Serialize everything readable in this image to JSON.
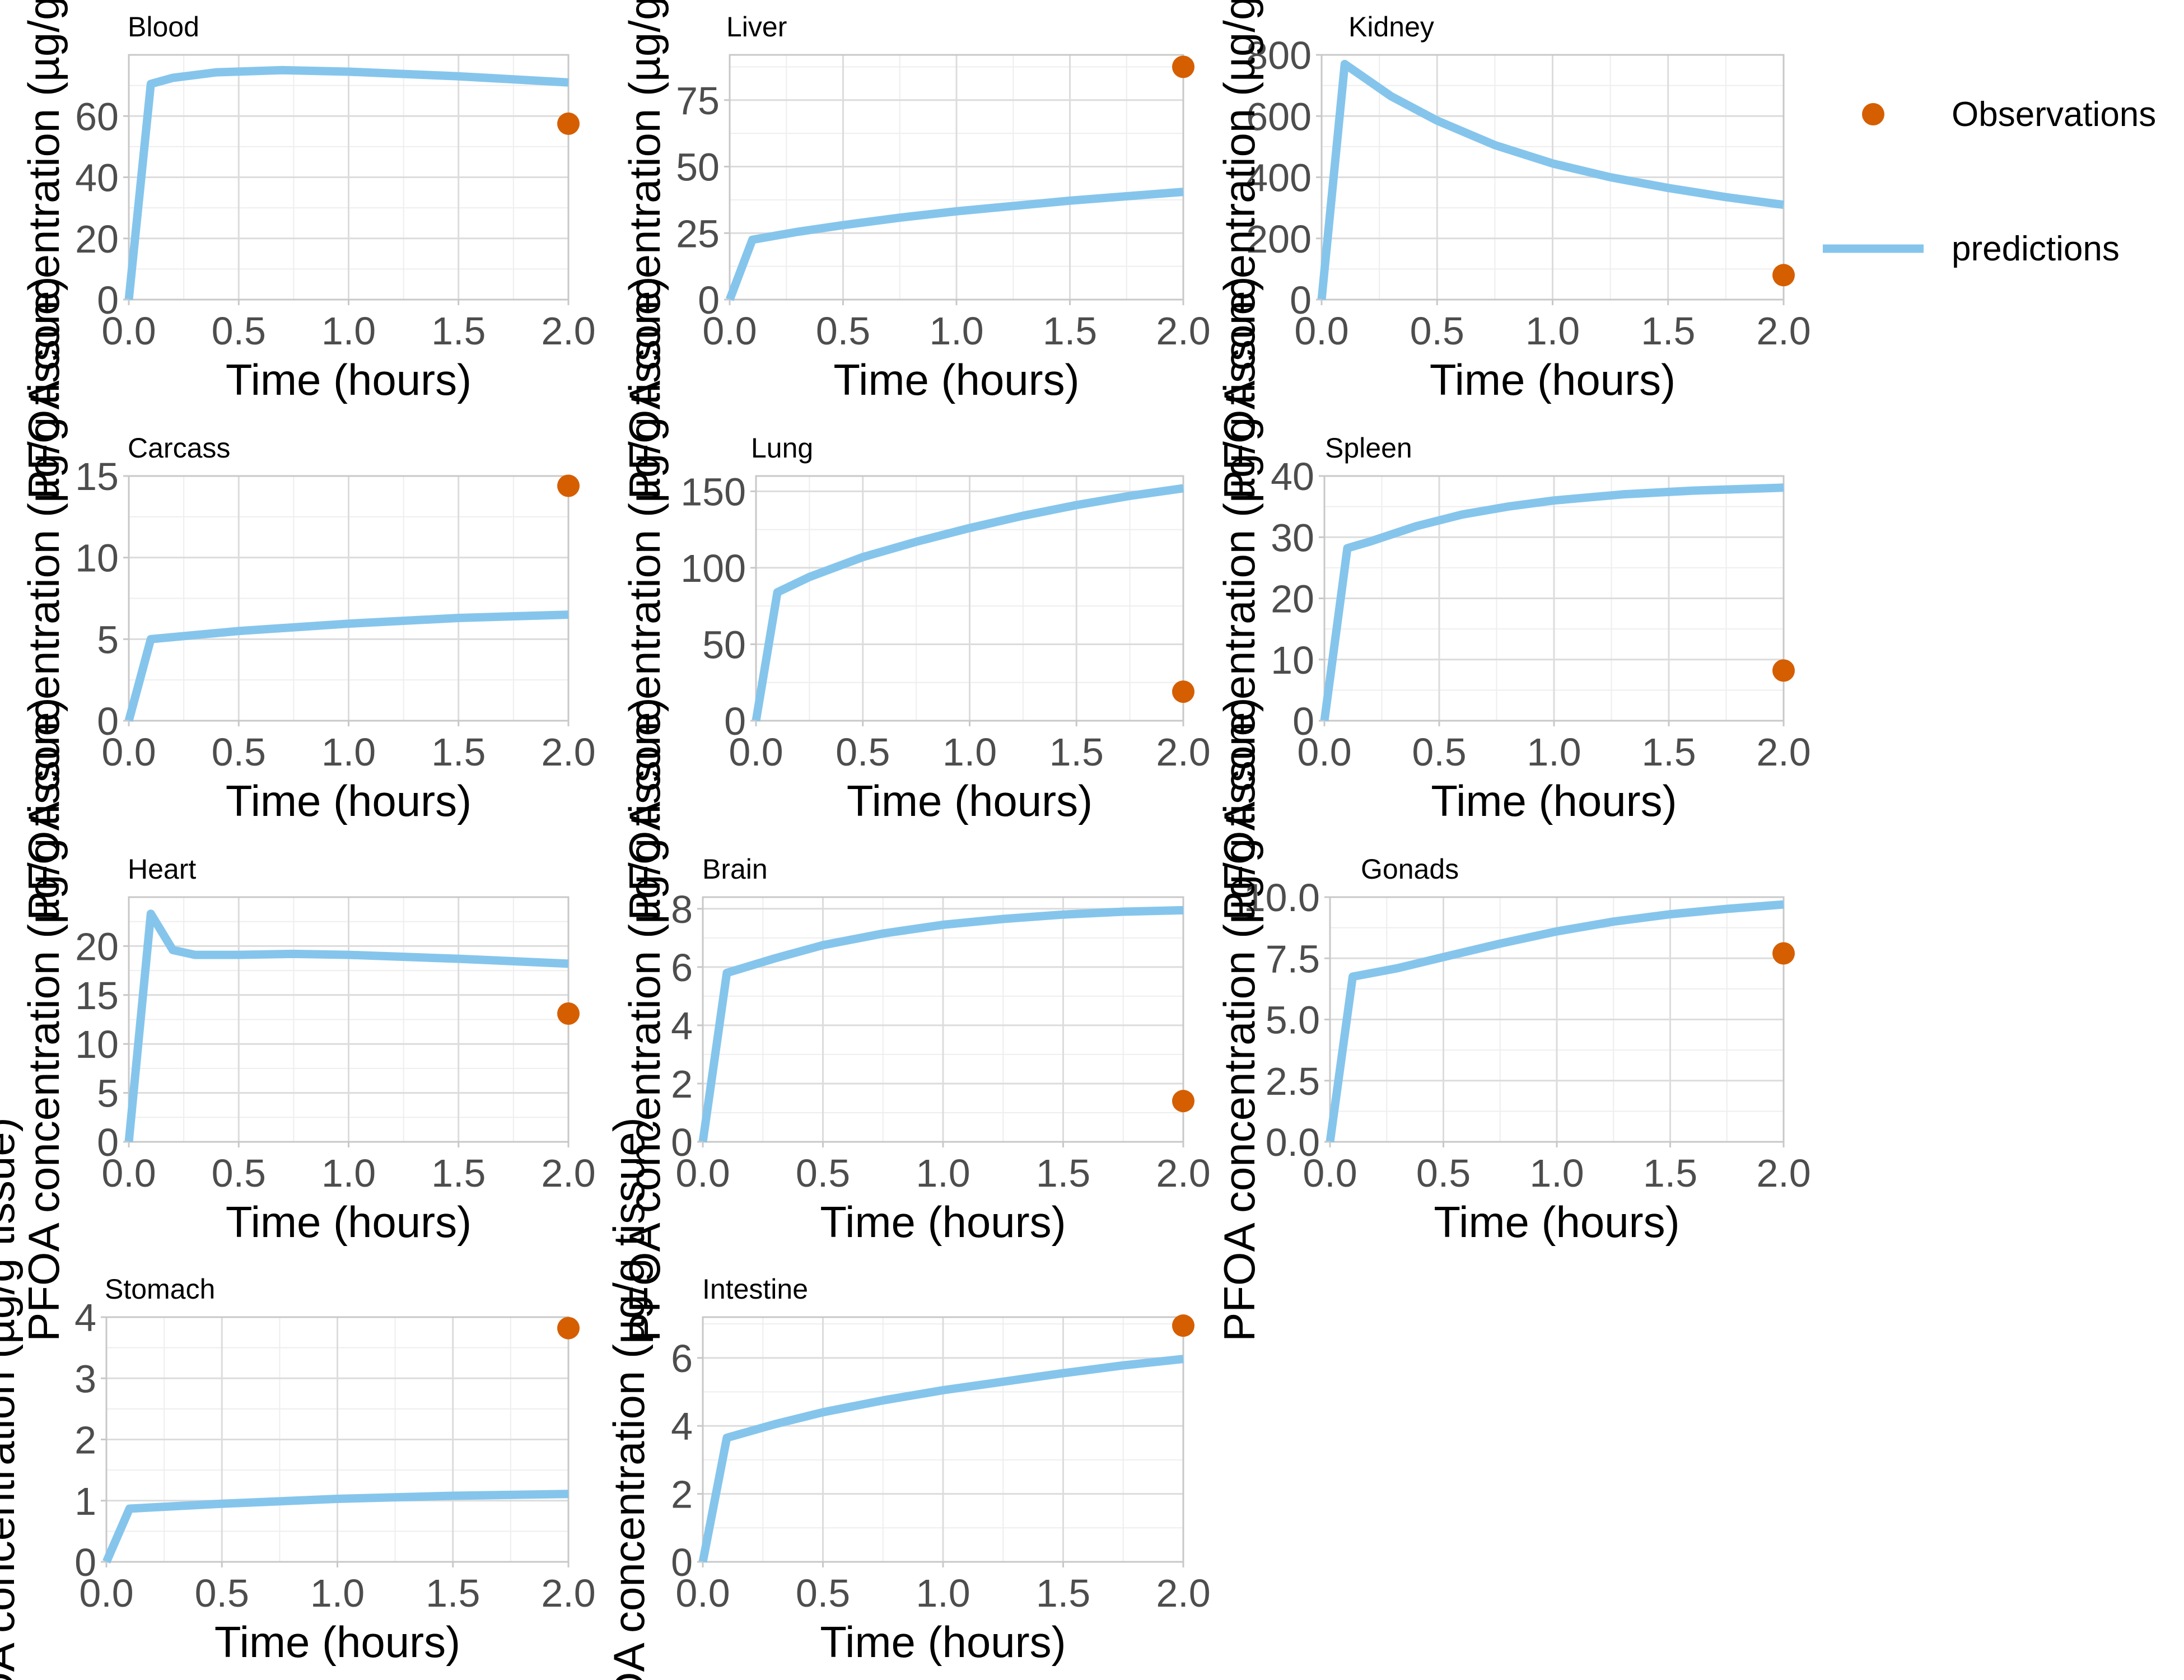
{
  "colors": {
    "predictions": "#85c5ec",
    "observations": "#d55e00",
    "grid_major": "#dcdcdc",
    "grid_minor": "#eeeeee",
    "border": "#c8c8c8"
  },
  "legend": {
    "observations": "Observations",
    "predictions": "predictions"
  },
  "chart_data": [
    {
      "type": "line",
      "title": "Blood",
      "xlabel": "Time (hours)",
      "ylabel": "PFOA concentration (µg/g tissue)",
      "xlim": [
        0,
        2
      ],
      "ylim": [
        0,
        80
      ],
      "xticks": [
        0,
        0.5,
        1,
        1.5,
        2
      ],
      "xtick_labels": [
        "0.0",
        "0.5",
        "1.0",
        "1.5",
        "2.0"
      ],
      "yticks": [
        0,
        20,
        40,
        60
      ],
      "ytick_labels": [
        "0",
        "20",
        "40",
        "60"
      ],
      "series": [
        {
          "name": "predictions",
          "x": [
            0,
            0.1,
            0.2,
            0.4,
            0.7,
            1.0,
            1.5,
            2.0
          ],
          "y": [
            0,
            70.5,
            72.5,
            74.3,
            75.0,
            74.5,
            73.0,
            71.0
          ]
        },
        {
          "name": "Observations",
          "x": [
            2.0
          ],
          "y": [
            57.5
          ]
        }
      ]
    },
    {
      "type": "line",
      "title": "Liver",
      "xlabel": "Time (hours)",
      "ylabel": "PFOA concentration (µg/g tissue)",
      "xlim": [
        0,
        2
      ],
      "ylim": [
        0,
        92
      ],
      "xticks": [
        0,
        0.5,
        1,
        1.5,
        2
      ],
      "xtick_labels": [
        "0.0",
        "0.5",
        "1.0",
        "1.5",
        "2.0"
      ],
      "yticks": [
        0,
        25,
        50,
        75
      ],
      "ytick_labels": [
        "0",
        "25",
        "50",
        "75"
      ],
      "series": [
        {
          "name": "predictions",
          "x": [
            0,
            0.1,
            0.3,
            0.5,
            0.75,
            1.0,
            1.5,
            2.0
          ],
          "y": [
            0,
            22.5,
            25.5,
            28.0,
            30.8,
            33.2,
            37.2,
            40.5
          ]
        },
        {
          "name": "Observations",
          "x": [
            2.0
          ],
          "y": [
            87.5
          ]
        }
      ]
    },
    {
      "type": "line",
      "title": "Kidney",
      "xlabel": "Time (hours)",
      "ylabel": "PFOA concentration (µg/g tissue)",
      "xlim": [
        0,
        2
      ],
      "ylim": [
        0,
        800
      ],
      "xticks": [
        0,
        0.5,
        1,
        1.5,
        2
      ],
      "xtick_labels": [
        "0.0",
        "0.5",
        "1.0",
        "1.5",
        "2.0"
      ],
      "yticks": [
        0,
        200,
        400,
        600,
        800
      ],
      "ytick_labels": [
        "0",
        "200",
        "400",
        "600",
        "800"
      ],
      "series": [
        {
          "name": "predictions",
          "x": [
            0,
            0.1,
            0.3,
            0.5,
            0.75,
            1.0,
            1.25,
            1.5,
            1.75,
            2.0
          ],
          "y": [
            0,
            770,
            665,
            585,
            505,
            445,
            400,
            365,
            335,
            310
          ]
        },
        {
          "name": "Observations",
          "x": [
            2.0
          ],
          "y": [
            80
          ]
        }
      ]
    },
    {
      "type": "line",
      "title": "Carcass",
      "xlabel": "Time (hours)",
      "ylabel": "PFOA concentration (µg/g tissue)",
      "xlim": [
        0,
        2
      ],
      "ylim": [
        0,
        15
      ],
      "xticks": [
        0,
        0.5,
        1,
        1.5,
        2
      ],
      "xtick_labels": [
        "0.0",
        "0.5",
        "1.0",
        "1.5",
        "2.0"
      ],
      "yticks": [
        0,
        5,
        10,
        15
      ],
      "ytick_labels": [
        "0",
        "5",
        "10",
        "15"
      ],
      "series": [
        {
          "name": "predictions",
          "x": [
            0,
            0.1,
            0.5,
            1.0,
            1.5,
            2.0
          ],
          "y": [
            0,
            5.0,
            5.5,
            5.95,
            6.3,
            6.5
          ]
        },
        {
          "name": "Observations",
          "x": [
            2.0
          ],
          "y": [
            14.4
          ]
        }
      ]
    },
    {
      "type": "line",
      "title": "Lung",
      "xlabel": "Time (hours)",
      "ylabel": "PFOA concentration (µg/g tissue)",
      "xlim": [
        0,
        2
      ],
      "ylim": [
        0,
        160
      ],
      "xticks": [
        0,
        0.5,
        1,
        1.5,
        2
      ],
      "xtick_labels": [
        "0.0",
        "0.5",
        "1.0",
        "1.5",
        "2.0"
      ],
      "yticks": [
        0,
        50,
        100,
        150
      ],
      "ytick_labels": [
        "0",
        "50",
        "100",
        "150"
      ],
      "series": [
        {
          "name": "predictions",
          "x": [
            0,
            0.1,
            0.25,
            0.5,
            0.75,
            1.0,
            1.25,
            1.5,
            1.75,
            2.0
          ],
          "y": [
            0,
            84,
            94,
            107,
            117,
            126,
            134,
            141,
            147,
            152
          ]
        },
        {
          "name": "Observations",
          "x": [
            2.0
          ],
          "y": [
            19
          ]
        }
      ]
    },
    {
      "type": "line",
      "title": "Spleen",
      "xlabel": "Time (hours)",
      "ylabel": "PFOA concentration (µg/g tissue)",
      "xlim": [
        0,
        2
      ],
      "ylim": [
        0,
        40
      ],
      "xticks": [
        0,
        0.5,
        1,
        1.5,
        2
      ],
      "xtick_labels": [
        "0.0",
        "0.5",
        "1.0",
        "1.5",
        "2.0"
      ],
      "yticks": [
        0,
        10,
        20,
        30,
        40
      ],
      "ytick_labels": [
        "0",
        "10",
        "20",
        "30",
        "40"
      ],
      "series": [
        {
          "name": "predictions",
          "x": [
            0,
            0.1,
            0.2,
            0.4,
            0.6,
            0.8,
            1.0,
            1.3,
            1.6,
            2.0
          ],
          "y": [
            0,
            28.2,
            29.3,
            31.8,
            33.7,
            35.0,
            36.0,
            37.0,
            37.6,
            38.1
          ]
        },
        {
          "name": "Observations",
          "x": [
            2.0
          ],
          "y": [
            8.2
          ]
        }
      ]
    },
    {
      "type": "line",
      "title": "Heart",
      "xlabel": "Time (hours)",
      "ylabel": "PFOA concentration (µg/g tissue)",
      "xlim": [
        0,
        2
      ],
      "ylim": [
        0,
        25
      ],
      "xticks": [
        0,
        0.5,
        1,
        1.5,
        2
      ],
      "xtick_labels": [
        "0.0",
        "0.5",
        "1.0",
        "1.5",
        "2.0"
      ],
      "yticks": [
        0,
        5,
        10,
        15,
        20
      ],
      "ytick_labels": [
        "0",
        "5",
        "10",
        "15",
        "20"
      ],
      "series": [
        {
          "name": "predictions",
          "x": [
            0,
            0.1,
            0.2,
            0.3,
            0.5,
            0.75,
            1.0,
            1.5,
            2.0
          ],
          "y": [
            0,
            23.3,
            19.6,
            19.1,
            19.1,
            19.2,
            19.1,
            18.7,
            18.2
          ]
        },
        {
          "name": "Observations",
          "x": [
            2.0
          ],
          "y": [
            13.1
          ]
        }
      ]
    },
    {
      "type": "line",
      "title": "Brain",
      "xlabel": "Time (hours)",
      "ylabel": "PFOA concentration (µg/g tissue)",
      "xlim": [
        0,
        2
      ],
      "ylim": [
        0,
        8.4
      ],
      "xticks": [
        0,
        0.5,
        1,
        1.5,
        2
      ],
      "xtick_labels": [
        "0.0",
        "0.5",
        "1.0",
        "1.5",
        "2.0"
      ],
      "yticks": [
        0,
        2,
        4,
        6,
        8
      ],
      "ytick_labels": [
        "0",
        "2",
        "4",
        "6",
        "8"
      ],
      "series": [
        {
          "name": "predictions",
          "x": [
            0,
            0.1,
            0.3,
            0.5,
            0.75,
            1.0,
            1.25,
            1.5,
            1.75,
            2.0
          ],
          "y": [
            0,
            5.8,
            6.3,
            6.75,
            7.15,
            7.45,
            7.65,
            7.8,
            7.9,
            7.95
          ]
        },
        {
          "name": "Observations",
          "x": [
            2.0
          ],
          "y": [
            1.4
          ]
        }
      ]
    },
    {
      "type": "line",
      "title": "Gonads",
      "xlabel": "Time (hours)",
      "ylabel": "PFOA concentration (µg/g tissue)",
      "xlim": [
        0,
        2
      ],
      "ylim": [
        0,
        10
      ],
      "xticks": [
        0,
        0.5,
        1,
        1.5,
        2
      ],
      "xtick_labels": [
        "0.0",
        "0.5",
        "1.0",
        "1.5",
        "2.0"
      ],
      "yticks": [
        0,
        2.5,
        5,
        7.5,
        10
      ],
      "ytick_labels": [
        "0.0",
        "2.5",
        "5.0",
        "7.5",
        "10.0"
      ],
      "series": [
        {
          "name": "predictions",
          "x": [
            0,
            0.1,
            0.3,
            0.5,
            0.75,
            1.0,
            1.25,
            1.5,
            1.75,
            2.0
          ],
          "y": [
            0,
            6.75,
            7.1,
            7.55,
            8.1,
            8.6,
            9.0,
            9.3,
            9.52,
            9.7
          ]
        },
        {
          "name": "Observations",
          "x": [
            2.0
          ],
          "y": [
            7.7
          ]
        }
      ]
    },
    {
      "type": "line",
      "title": "Stomach",
      "xlabel": "Time (hours)",
      "ylabel": "PFOA concentration (µg/g tissue)",
      "xlim": [
        0,
        2
      ],
      "ylim": [
        0,
        4
      ],
      "xticks": [
        0,
        0.5,
        1,
        1.5,
        2
      ],
      "xtick_labels": [
        "0.0",
        "0.5",
        "1.0",
        "1.5",
        "2.0"
      ],
      "yticks": [
        0,
        1,
        2,
        3,
        4
      ],
      "ytick_labels": [
        "0",
        "1",
        "2",
        "3",
        "4"
      ],
      "series": [
        {
          "name": "predictions",
          "x": [
            0,
            0.1,
            0.5,
            1.0,
            1.5,
            2.0
          ],
          "y": [
            0,
            0.87,
            0.95,
            1.03,
            1.08,
            1.11
          ]
        },
        {
          "name": "Observations",
          "x": [
            2.0
          ],
          "y": [
            3.82
          ]
        }
      ]
    },
    {
      "type": "line",
      "title": "Intestine",
      "xlabel": "Time (hours)",
      "ylabel": "PFOA concentration (µg/g tissue)",
      "xlim": [
        0,
        2
      ],
      "ylim": [
        0,
        7.2
      ],
      "xticks": [
        0,
        0.5,
        1,
        1.5,
        2
      ],
      "xtick_labels": [
        "0.0",
        "0.5",
        "1.0",
        "1.5",
        "2.0"
      ],
      "yticks": [
        0,
        2,
        4,
        6
      ],
      "ytick_labels": [
        "0",
        "2",
        "4",
        "6"
      ],
      "series": [
        {
          "name": "predictions",
          "x": [
            0,
            0.1,
            0.3,
            0.5,
            0.75,
            1.0,
            1.25,
            1.5,
            1.75,
            2.0
          ],
          "y": [
            0,
            3.65,
            4.05,
            4.4,
            4.75,
            5.05,
            5.3,
            5.55,
            5.78,
            5.97
          ]
        },
        {
          "name": "Observations",
          "x": [
            2.0
          ],
          "y": [
            6.95
          ]
        }
      ]
    }
  ]
}
